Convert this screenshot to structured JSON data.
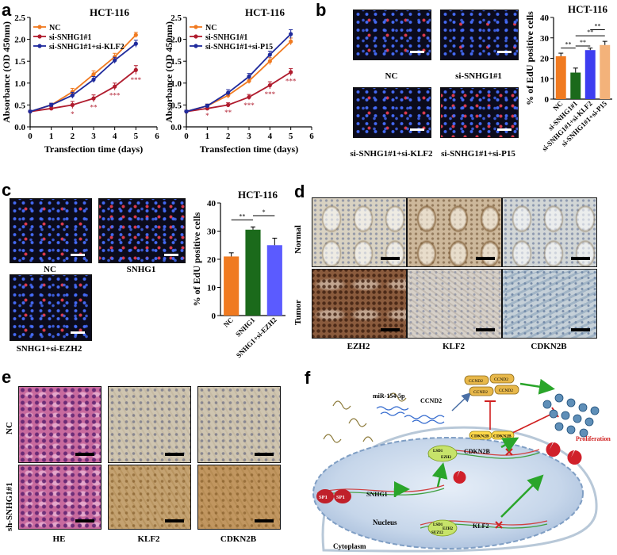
{
  "panels": {
    "a": "a",
    "b": "b",
    "c": "c",
    "d": "d",
    "e": "e",
    "f": "f"
  },
  "colors": {
    "nc": "#f07a20",
    "si_snhg1": "#b01c2e",
    "combo": "#1f2a9c",
    "green": "#1b6a1b",
    "blue_bar": "#5b5bff",
    "peach": "#f3b27a",
    "bar_b_klf2": "#3d3df0",
    "bar_b_p15": "#f3b27a"
  },
  "chart_data": [
    {
      "type": "line",
      "title": "HCT-116",
      "xlabel": "Transfection time (days)",
      "ylabel": "Absorbance (OD 450nm)",
      "xlim": [
        0,
        6
      ],
      "ylim": [
        0,
        2.5
      ],
      "xticks": [
        "0",
        "1",
        "2",
        "3",
        "4",
        "5",
        "6"
      ],
      "yticks": [
        "0.0",
        "0.5",
        "1.0",
        "1.5",
        "2.0",
        "2.5"
      ],
      "x": [
        0,
        1,
        2,
        3,
        4,
        5
      ],
      "series": [
        {
          "name": "NC",
          "values": [
            0.35,
            0.5,
            0.8,
            1.2,
            1.6,
            2.1
          ],
          "err": [
            0.03,
            0.04,
            0.08,
            0.08,
            0.08,
            0.06
          ]
        },
        {
          "name": "si-SNHG1#1",
          "values": [
            0.35,
            0.42,
            0.5,
            0.65,
            0.92,
            1.3
          ],
          "err": [
            0.03,
            0.04,
            0.08,
            0.08,
            0.08,
            0.1
          ]
        },
        {
          "name": "si-SNHG1#1+si-KLF2",
          "values": [
            0.35,
            0.5,
            0.72,
            1.08,
            1.52,
            1.9
          ],
          "err": [
            0.03,
            0.04,
            0.07,
            0.07,
            0.07,
            0.08
          ]
        }
      ],
      "annotations": [
        "*",
        "**",
        "***",
        "***"
      ]
    },
    {
      "type": "line",
      "title": "HCT-116",
      "xlabel": "Transfection time (days)",
      "ylabel": "Absorbance (OD 450nm)",
      "xlim": [
        0,
        6
      ],
      "ylim": [
        0,
        2.5
      ],
      "xticks": [
        "0",
        "1",
        "2",
        "3",
        "4",
        "5",
        "6"
      ],
      "yticks": [
        "0.0",
        "0.5",
        "1.0",
        "1.5",
        "2.0",
        "2.5"
      ],
      "x": [
        0,
        1,
        2,
        3,
        4,
        5
      ],
      "series": [
        {
          "name": "NC",
          "values": [
            0.35,
            0.48,
            0.72,
            1.05,
            1.5,
            1.95
          ],
          "err": [
            0.03,
            0.04,
            0.06,
            0.06,
            0.08,
            0.08
          ]
        },
        {
          "name": "si-SNHG1#1",
          "values": [
            0.35,
            0.42,
            0.5,
            0.68,
            0.95,
            1.25
          ],
          "err": [
            0.03,
            0.04,
            0.05,
            0.06,
            0.08,
            0.08
          ]
        },
        {
          "name": "si-SNHG1#1+si-P15",
          "values": [
            0.35,
            0.48,
            0.78,
            1.15,
            1.65,
            2.12
          ],
          "err": [
            0.03,
            0.04,
            0.07,
            0.07,
            0.08,
            0.1
          ]
        }
      ],
      "annotations": [
        "*",
        "**",
        "***",
        "***",
        "***"
      ]
    },
    {
      "type": "bar",
      "title": "HCT-116",
      "ylabel": "% of EdU positive cells",
      "ylim": [
        0,
        40
      ],
      "yticks": [
        "0",
        "10",
        "20",
        "30",
        "40"
      ],
      "categories": [
        "NC",
        "si-SNHG1#1",
        "si-SNHG1#1+si-KLF2",
        "si-SNHG1#1+si-P15"
      ],
      "values": [
        21,
        13,
        24,
        26.5
      ],
      "err": [
        1.5,
        2.2,
        1.0,
        1.8
      ],
      "significance": [
        "**",
        "**",
        "**",
        "**"
      ]
    },
    {
      "type": "bar",
      "title": "HCT-116",
      "ylabel": "% of EdU positive cells",
      "ylim": [
        0,
        40
      ],
      "yticks": [
        "0",
        "10",
        "20",
        "30",
        "40"
      ],
      "categories": [
        "NC",
        "SNHG1",
        "SNHG1+si-EZH2"
      ],
      "values": [
        21,
        30.5,
        25
      ],
      "err": [
        1.3,
        1.0,
        2.5
      ],
      "significance": [
        "**",
        "*"
      ]
    }
  ],
  "panel_b": {
    "labels": [
      "NC",
      "si-SNHG1#1",
      "si-SNHG1#1+si-KLF2",
      "si-SNHG1#1+si-P15"
    ]
  },
  "panel_c": {
    "labels": [
      "NC",
      "SNHG1",
      "SNHG1+si-EZH2"
    ]
  },
  "panel_d": {
    "rows": [
      "Normal",
      "Tumor"
    ],
    "cols": [
      "EZH2",
      "KLF2",
      "CDKN2B"
    ]
  },
  "panel_e": {
    "rows": [
      "NC",
      "sh-SNHG1#1"
    ],
    "cols": [
      "HE",
      "KLF2",
      "CDKN2B"
    ]
  },
  "panel_f": {
    "mir": "miR-154-5p",
    "ccnd2_top": "CCND2",
    "ccnd2_boxes": [
      "CCND2",
      "CCND2",
      "CCND2",
      "CCND2"
    ],
    "cdkn2b_pills": [
      "CDKN2B",
      "CDKN2B"
    ],
    "cdkn2b_gene": "CDKN2B",
    "klf2_gene": "KLF2",
    "snhg1": "SNHG1",
    "sp1": [
      "SP1",
      "SP1"
    ],
    "lsd1": "LSD1",
    "ezh2": "EZH2",
    "suz12": "SUZ12",
    "proliferation": "Proliferation",
    "nucleus": "Nucleus",
    "cytoplasm": "Cytoplasm"
  }
}
